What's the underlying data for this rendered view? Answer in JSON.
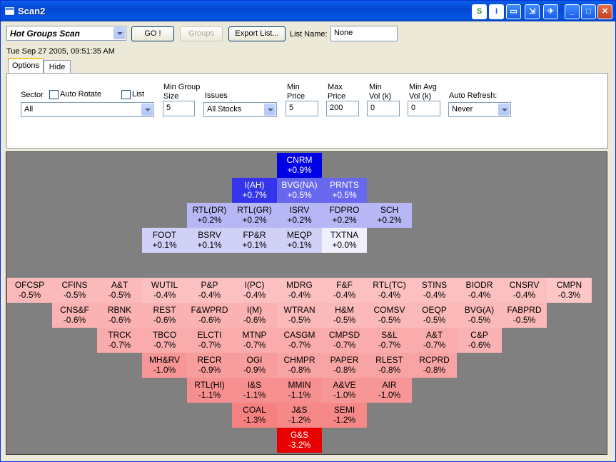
{
  "window": {
    "title": "Scan2"
  },
  "toolbar": {
    "scan_select": "Hot Groups Scan",
    "go_label": "GO !",
    "groups_label": "Groups",
    "export_label": "Export List...",
    "list_name_label": "List Name:",
    "list_name_value": "None"
  },
  "timestamp": "Tue Sep 27 2005, 09:51:35 AM",
  "tabs": [
    {
      "label": "Options"
    },
    {
      "label": "Hide"
    }
  ],
  "options": {
    "sector_label": "Sector",
    "auto_rotate_label": "Auto Rotate",
    "list_label": "List",
    "sector_value": "All",
    "min_group_size_label_1": "Min Group",
    "min_group_size_label_2": "Size",
    "min_group_size_value": "5",
    "issues_label": "Issues",
    "issues_value": "All Stocks",
    "min_price_label_1": "Min",
    "min_price_label_2": "Price",
    "min_price_value": "5",
    "max_price_label_1": "Max",
    "max_price_label_2": "Price",
    "max_price_value": "200",
    "min_vol_label_1": "Min",
    "min_vol_label_2": "Vol (k)",
    "min_vol_value": "0",
    "min_avg_vol_label_1": "Min Avg",
    "min_avg_vol_label_2": "Vol (k)",
    "min_avg_vol_value": "0",
    "auto_refresh_label": "Auto Refresh:",
    "auto_refresh_value": "Never"
  },
  "groups": [
    {
      "name": "CNRM",
      "change": "+0.9%",
      "value": 0.9,
      "row": 0,
      "col": 6
    },
    {
      "name": "I(AH)",
      "change": "+0.7%",
      "value": 0.7,
      "row": 1,
      "col": 5
    },
    {
      "name": "BVG(NA)",
      "change": "+0.5%",
      "value": 0.5,
      "row": 1,
      "col": 6
    },
    {
      "name": "PRNTS",
      "change": "+0.5%",
      "value": 0.5,
      "row": 1,
      "col": 7
    },
    {
      "name": "RTL(DR)",
      "change": "+0.2%",
      "value": 0.2,
      "row": 2,
      "col": 4
    },
    {
      "name": "RTL(GR)",
      "change": "+0.2%",
      "value": 0.2,
      "row": 2,
      "col": 5
    },
    {
      "name": "ISRV",
      "change": "+0.2%",
      "value": 0.2,
      "row": 2,
      "col": 6
    },
    {
      "name": "FDPRO",
      "change": "+0.2%",
      "value": 0.2,
      "row": 2,
      "col": 7
    },
    {
      "name": "SCH",
      "change": "+0.2%",
      "value": 0.2,
      "row": 2,
      "col": 8
    },
    {
      "name": "FOOT",
      "change": "+0.1%",
      "value": 0.1,
      "row": 3,
      "col": 3
    },
    {
      "name": "BSRV",
      "change": "+0.1%",
      "value": 0.1,
      "row": 3,
      "col": 4
    },
    {
      "name": "FP&R",
      "change": "+0.1%",
      "value": 0.1,
      "row": 3,
      "col": 5
    },
    {
      "name": "MEQP",
      "change": "+0.1%",
      "value": 0.1,
      "row": 3,
      "col": 6
    },
    {
      "name": "TXTNA",
      "change": "+0.0%",
      "value": 0.0,
      "row": 3,
      "col": 7
    },
    {
      "name": "OFCSP",
      "change": "-0.5%",
      "value": -0.5,
      "row": 5,
      "col": 0
    },
    {
      "name": "CFINS",
      "change": "-0.5%",
      "value": -0.5,
      "row": 5,
      "col": 1
    },
    {
      "name": "A&T",
      "change": "-0.5%",
      "value": -0.5,
      "row": 5,
      "col": 2
    },
    {
      "name": "WUTIL",
      "change": "-0.4%",
      "value": -0.4,
      "row": 5,
      "col": 3
    },
    {
      "name": "P&P",
      "change": "-0.4%",
      "value": -0.4,
      "row": 5,
      "col": 4
    },
    {
      "name": "I(PC)",
      "change": "-0.4%",
      "value": -0.4,
      "row": 5,
      "col": 5
    },
    {
      "name": "MDRG",
      "change": "-0.4%",
      "value": -0.4,
      "row": 5,
      "col": 6
    },
    {
      "name": "F&F",
      "change": "-0.4%",
      "value": -0.4,
      "row": 5,
      "col": 7
    },
    {
      "name": "RTL(TC)",
      "change": "-0.4%",
      "value": -0.4,
      "row": 5,
      "col": 8
    },
    {
      "name": "STINS",
      "change": "-0.4%",
      "value": -0.4,
      "row": 5,
      "col": 9
    },
    {
      "name": "BIODR",
      "change": "-0.4%",
      "value": -0.4,
      "row": 5,
      "col": 10
    },
    {
      "name": "CNSRV",
      "change": "-0.4%",
      "value": -0.4,
      "row": 5,
      "col": 11
    },
    {
      "name": "CMPN",
      "change": "-0.3%",
      "value": -0.3,
      "row": 5,
      "col": 12
    },
    {
      "name": "CNS&F",
      "change": "-0.6%",
      "value": -0.6,
      "row": 6,
      "col": 1
    },
    {
      "name": "RBNK",
      "change": "-0.6%",
      "value": -0.6,
      "row": 6,
      "col": 2
    },
    {
      "name": "REST",
      "change": "-0.6%",
      "value": -0.6,
      "row": 6,
      "col": 3
    },
    {
      "name": "F&WPRD",
      "change": "-0.6%",
      "value": -0.6,
      "row": 6,
      "col": 4
    },
    {
      "name": "I(M)",
      "change": "-0.6%",
      "value": -0.6,
      "row": 6,
      "col": 5
    },
    {
      "name": "WTRAN",
      "change": "-0.5%",
      "value": -0.5,
      "row": 6,
      "col": 6
    },
    {
      "name": "H&M",
      "change": "-0.5%",
      "value": -0.5,
      "row": 6,
      "col": 7
    },
    {
      "name": "COMSV",
      "change": "-0.5%",
      "value": -0.5,
      "row": 6,
      "col": 8
    },
    {
      "name": "OEQP",
      "change": "-0.5%",
      "value": -0.5,
      "row": 6,
      "col": 9
    },
    {
      "name": "BVG(A)",
      "change": "-0.5%",
      "value": -0.5,
      "row": 6,
      "col": 10
    },
    {
      "name": "FABPRD",
      "change": "-0.5%",
      "value": -0.5,
      "row": 6,
      "col": 11
    },
    {
      "name": "TRCK",
      "change": "-0.7%",
      "value": -0.7,
      "row": 7,
      "col": 2
    },
    {
      "name": "TBCO",
      "change": "-0.7%",
      "value": -0.7,
      "row": 7,
      "col": 3
    },
    {
      "name": "ELCTI",
      "change": "-0.7%",
      "value": -0.7,
      "row": 7,
      "col": 4
    },
    {
      "name": "MTNP",
      "change": "-0.7%",
      "value": -0.7,
      "row": 7,
      "col": 5
    },
    {
      "name": "CASGM",
      "change": "-0.7%",
      "value": -0.7,
      "row": 7,
      "col": 6
    },
    {
      "name": "CMPSD",
      "change": "-0.7%",
      "value": -0.7,
      "row": 7,
      "col": 7
    },
    {
      "name": "S&L",
      "change": "-0.7%",
      "value": -0.7,
      "row": 7,
      "col": 8
    },
    {
      "name": "A&T",
      "change": "-0.7%",
      "value": -0.7,
      "row": 7,
      "col": 9
    },
    {
      "name": "C&P",
      "change": "-0.6%",
      "value": -0.6,
      "row": 7,
      "col": 10
    },
    {
      "name": "MH&RV",
      "change": "-1.0%",
      "value": -1.0,
      "row": 8,
      "col": 3
    },
    {
      "name": "RECR",
      "change": "-0.9%",
      "value": -0.9,
      "row": 8,
      "col": 4
    },
    {
      "name": "OGI",
      "change": "-0.9%",
      "value": -0.9,
      "row": 8,
      "col": 5
    },
    {
      "name": "CHMPR",
      "change": "-0.8%",
      "value": -0.8,
      "row": 8,
      "col": 6
    },
    {
      "name": "PAPER",
      "change": "-0.8%",
      "value": -0.8,
      "row": 8,
      "col": 7
    },
    {
      "name": "RLEST",
      "change": "-0.8%",
      "value": -0.8,
      "row": 8,
      "col": 8
    },
    {
      "name": "RCPRD",
      "change": "-0.8%",
      "value": -0.8,
      "row": 8,
      "col": 9
    },
    {
      "name": "RTL(HI)",
      "change": "-1.1%",
      "value": -1.1,
      "row": 9,
      "col": 4
    },
    {
      "name": "I&S",
      "change": "-1.1%",
      "value": -1.1,
      "row": 9,
      "col": 5
    },
    {
      "name": "MMIN",
      "change": "-1.1%",
      "value": -1.1,
      "row": 9,
      "col": 6
    },
    {
      "name": "A&VE",
      "change": "-1.0%",
      "value": -1.0,
      "row": 9,
      "col": 7
    },
    {
      "name": "AIR",
      "change": "-1.0%",
      "value": -1.0,
      "row": 9,
      "col": 8
    },
    {
      "name": "COAL",
      "change": "-1.3%",
      "value": -1.3,
      "row": 10,
      "col": 5
    },
    {
      "name": "J&S",
      "change": "-1.2%",
      "value": -1.2,
      "row": 10,
      "col": 6
    },
    {
      "name": "SEMI",
      "change": "-1.2%",
      "value": -1.2,
      "row": 10,
      "col": 7
    },
    {
      "name": "G&S",
      "change": "-3.2%",
      "value": -3.2,
      "row": 11,
      "col": 6
    }
  ]
}
